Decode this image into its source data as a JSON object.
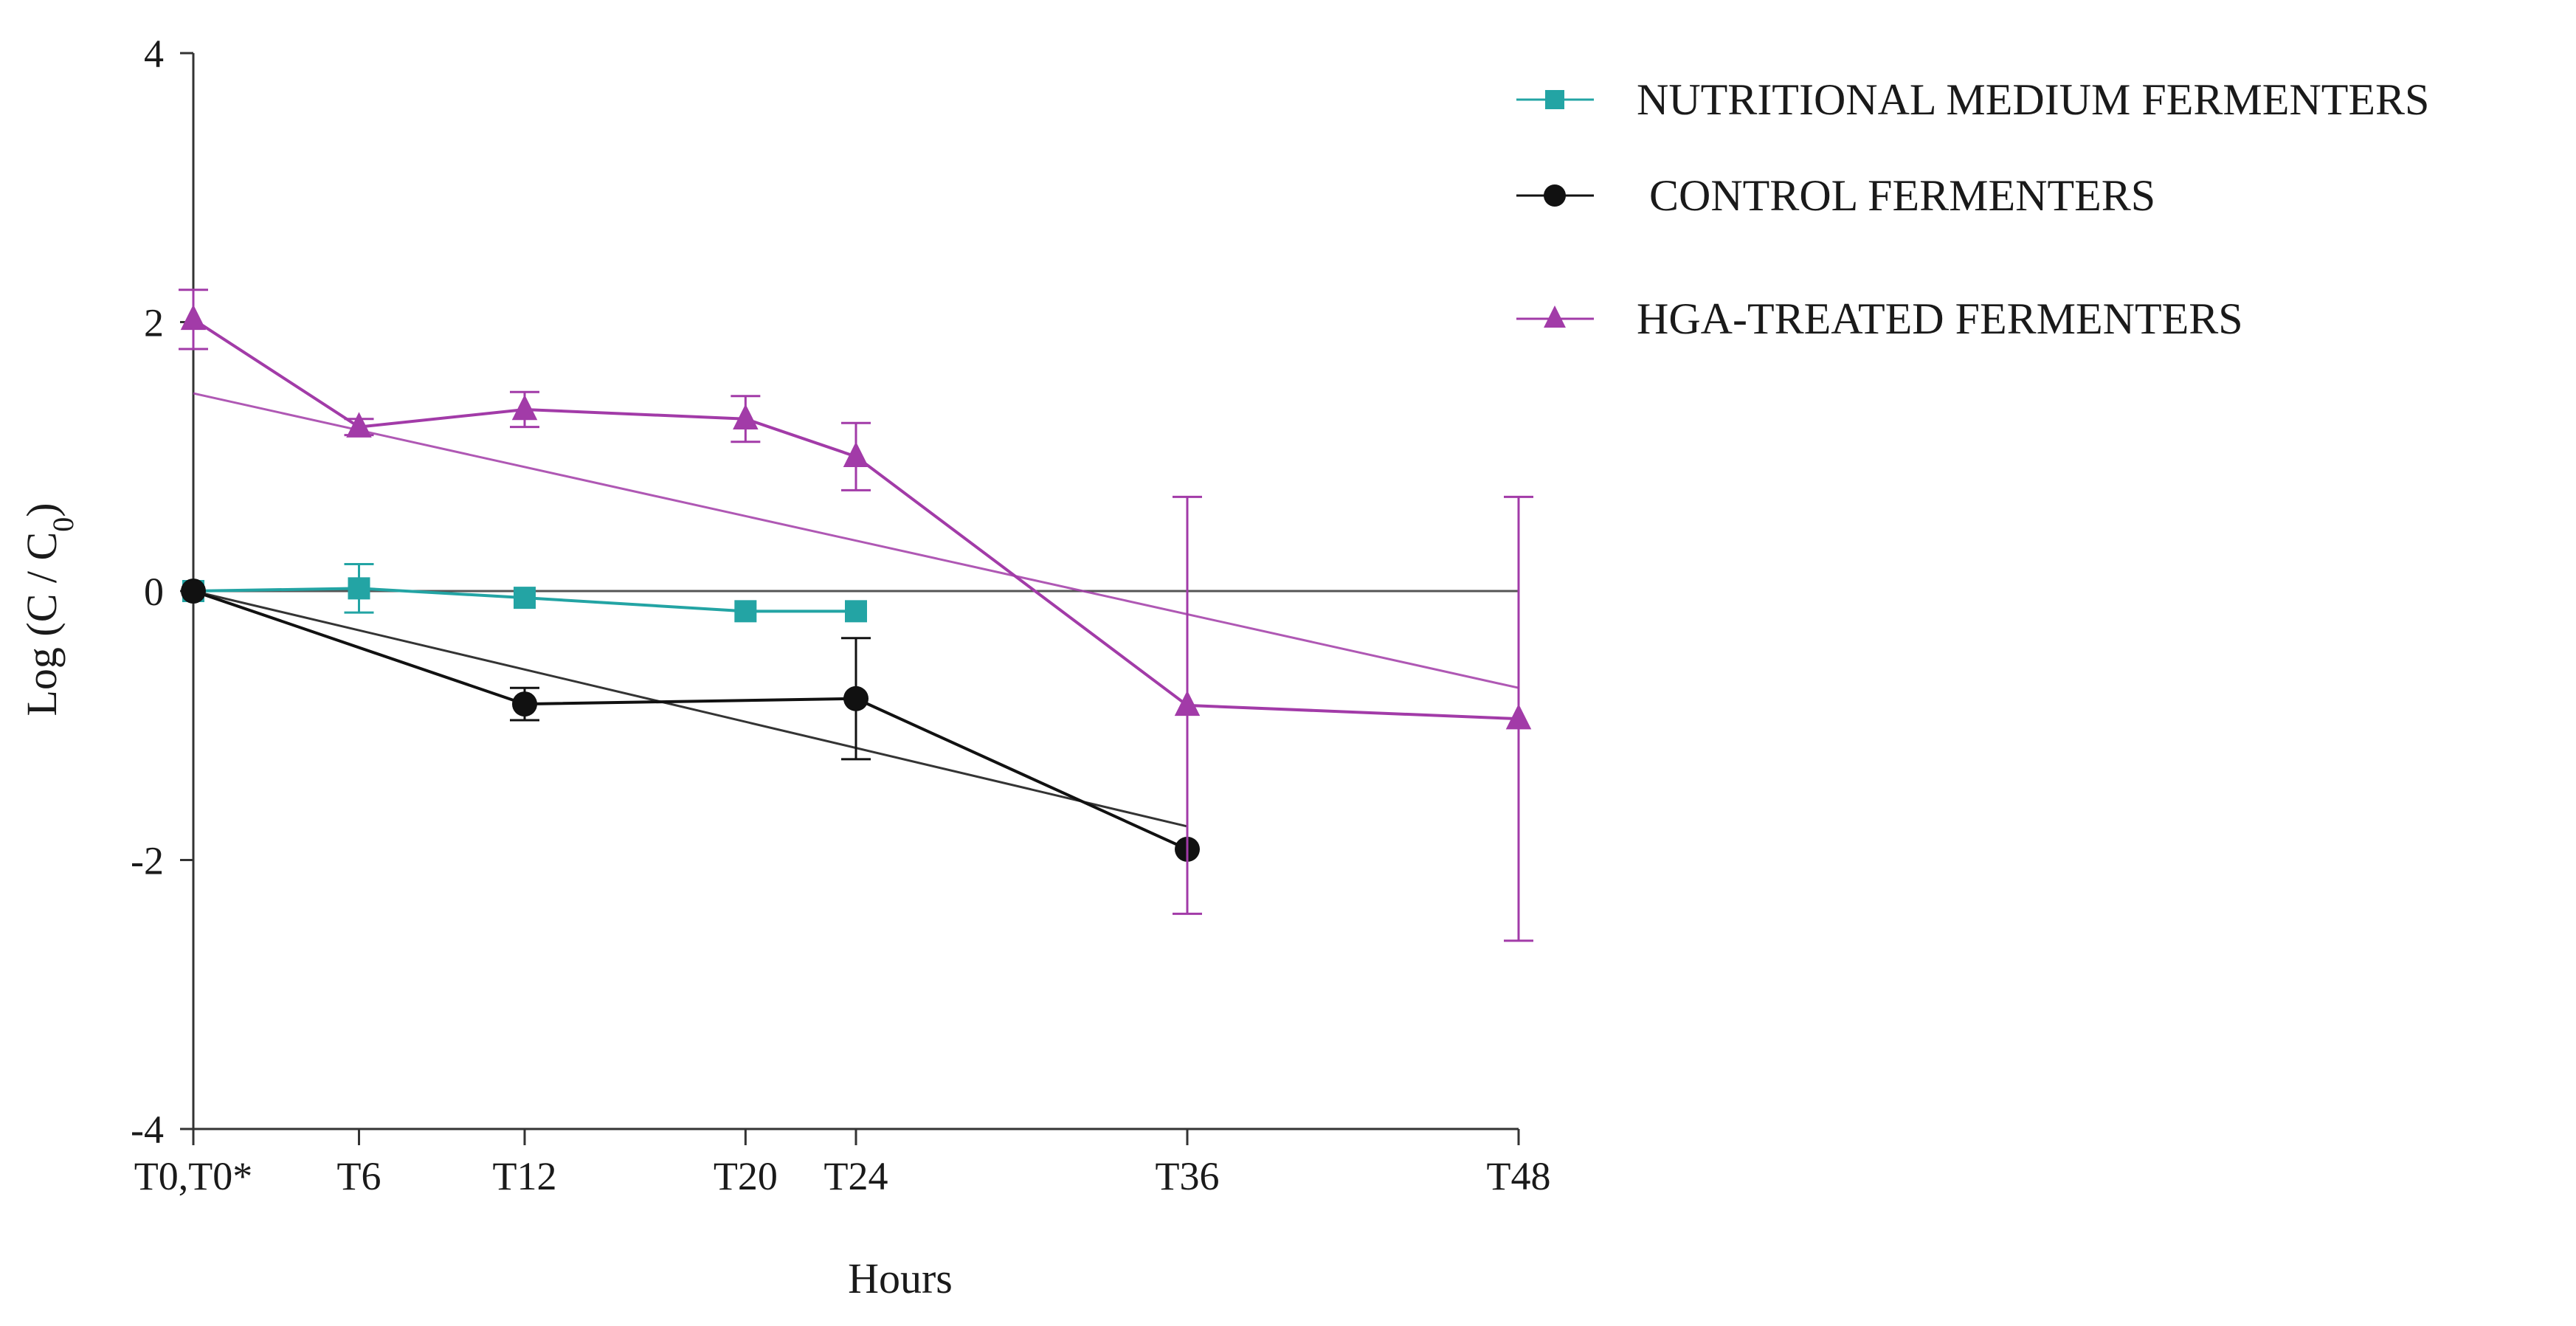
{
  "chart_data": {
    "type": "line",
    "title": "",
    "xlabel": "Hours",
    "ylabel_main": "Log (C / C",
    "ylabel_sub": "0",
    "ylabel_end": ")",
    "ylim": [
      -4,
      4
    ],
    "yticks": [
      {
        "value": 4,
        "label": "4"
      },
      {
        "value": 2,
        "label": "2"
      },
      {
        "value": 0,
        "label": "0"
      },
      {
        "value": -2,
        "label": "-2"
      },
      {
        "value": -4,
        "label": "-4"
      }
    ],
    "xlim": [
      0,
      48
    ],
    "xticks": [
      {
        "value": 0,
        "label": "T0,T0*"
      },
      {
        "value": 6,
        "label": "T6"
      },
      {
        "value": 12,
        "label": "T12"
      },
      {
        "value": 20,
        "label": "T20"
      },
      {
        "value": 24,
        "label": "T24"
      },
      {
        "value": 36,
        "label": "T36"
      },
      {
        "value": 48,
        "label": "T48"
      }
    ],
    "reference_line": {
      "y": 0,
      "x_from": 0,
      "x_to": 48
    },
    "legend_position": "top-right",
    "series": [
      {
        "name": "NUTRITIONAL MEDIUM FERMENTERS",
        "color": "#23a4a4",
        "marker": "square",
        "points": [
          {
            "x": 0,
            "y": 0.0,
            "err": 0
          },
          {
            "x": 6,
            "y": 0.02,
            "err": 0.18
          },
          {
            "x": 12,
            "y": -0.05,
            "err": 0
          },
          {
            "x": 20,
            "y": -0.15,
            "err": 0
          },
          {
            "x": 24,
            "y": -0.15,
            "err": 0
          }
        ],
        "trend": null
      },
      {
        "name": "CONTROL FERMENTERS",
        "color": "#111111",
        "marker": "circle",
        "points": [
          {
            "x": 0,
            "y": 0.0,
            "err": 0
          },
          {
            "x": 12,
            "y": -0.84,
            "err": 0.12
          },
          {
            "x": 24,
            "y": -0.8,
            "err": 0.45
          },
          {
            "x": 36,
            "y": -1.92,
            "err": 0
          }
        ],
        "trend": {
          "x1": 0,
          "y1": 0.0,
          "x2": 36,
          "y2": -1.75
        }
      },
      {
        "name": "HGA-TREATED FERMENTERS",
        "color": "#a23ba8",
        "marker": "triangle",
        "points": [
          {
            "x": 0,
            "y": 2.02,
            "err": 0.22
          },
          {
            "x": 6,
            "y": 1.22,
            "err": 0.06
          },
          {
            "x": 12,
            "y": 1.35,
            "err": 0.13
          },
          {
            "x": 20,
            "y": 1.28,
            "err": 0.17
          },
          {
            "x": 24,
            "y": 1.0,
            "err": 0.25
          },
          {
            "x": 36,
            "y": -0.85,
            "err": 1.55
          },
          {
            "x": 48,
            "y": -0.95,
            "err": 1.65
          }
        ],
        "trend": {
          "x1": 0,
          "y1": 1.47,
          "x2": 48,
          "y2": -0.72
        }
      }
    ]
  }
}
